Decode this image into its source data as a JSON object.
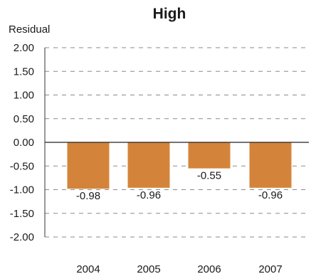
{
  "chart_data": {
    "type": "bar",
    "title": "High",
    "xlabel": "",
    "ylabel": "Residual",
    "categories": [
      "2004",
      "2005",
      "2006",
      "2007"
    ],
    "values": [
      -0.98,
      -0.96,
      -0.55,
      -0.96
    ],
    "value_labels": [
      "-0.98",
      "-0.96",
      "-0.55",
      "-0.96"
    ],
    "ylim": [
      -2.0,
      2.0
    ],
    "yticks": [
      2.0,
      1.5,
      1.0,
      0.5,
      0.0,
      -0.5,
      -1.0,
      -1.5,
      -2.0
    ],
    "ytick_labels": [
      "2.00",
      "1.50",
      "1.00",
      "0.50",
      "0.00",
      "-0.50",
      "-1.00",
      "-1.50",
      "-2.00"
    ],
    "grid": true,
    "legend": "none",
    "colors": {
      "bar": "#d4843a"
    }
  }
}
